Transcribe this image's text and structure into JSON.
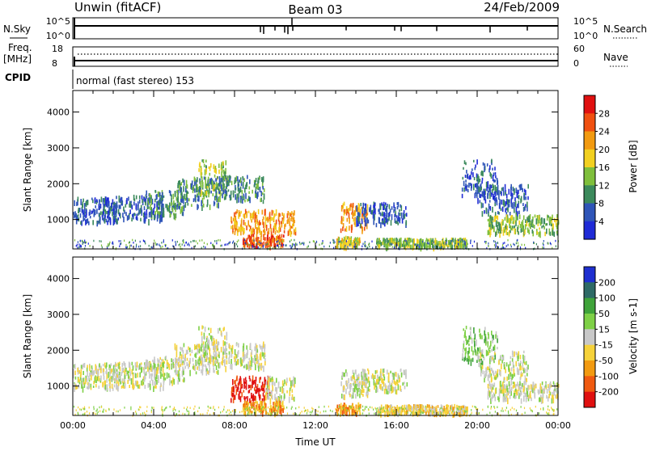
{
  "header": {
    "station": "Unwin (fitACF)",
    "beam": "Beam 03",
    "date": "24/Feb/2009"
  },
  "top_panel": {
    "left_label": "N.Sky",
    "right_label": "N.Search",
    "left_ticks": [
      "10^5",
      "10^0"
    ],
    "right_ticks": [
      "10^5",
      "10^0"
    ]
  },
  "freq_panel": {
    "left_label_1": "Freq.",
    "left_label_2": "[MHz]",
    "right_label": "Nave",
    "left_ticks": [
      "18",
      "8"
    ],
    "right_ticks": [
      "60",
      "0"
    ]
  },
  "cpid": {
    "label": "CPID",
    "mode_text": "normal (fast stereo) 153"
  },
  "chart_data": [
    {
      "type": "heatmap",
      "name": "power",
      "ylabel": "Slant Range [km]",
      "ylim": [
        180,
        4600
      ],
      "yticks": [
        1000,
        2000,
        3000,
        4000
      ],
      "colorbar_label": "Power [dB]",
      "colorbar_ticks": [
        "4",
        "8",
        "12",
        "16",
        "20",
        "24",
        "28"
      ],
      "colorbar_colors": [
        "#1f2bd6",
        "#2f55b8",
        "#3c8a5c",
        "#7fbf3c",
        "#f2d020",
        "#f29a10",
        "#f05010",
        "#e01010"
      ],
      "x_range_hours": [
        0,
        24
      ],
      "blobs": [
        {
          "t0": 0.0,
          "t1": 2.2,
          "r0": 950,
          "r1": 1650,
          "c": 1
        },
        {
          "t0": 1.5,
          "t1": 4.5,
          "r0": 1000,
          "r1": 1700,
          "c": 1
        },
        {
          "t0": 3.5,
          "t1": 5.5,
          "r0": 1150,
          "r1": 1850,
          "c": 2
        },
        {
          "t0": 5.0,
          "t1": 7.2,
          "r0": 1400,
          "r1": 2200,
          "c": 2
        },
        {
          "t0": 6.2,
          "t1": 7.6,
          "r0": 1700,
          "r1": 2700,
          "c": 3
        },
        {
          "t0": 7.0,
          "t1": 9.5,
          "r0": 1550,
          "r1": 2250,
          "c": 2
        },
        {
          "t0": 7.8,
          "t1": 11.0,
          "r0": 650,
          "r1": 1300,
          "c": 5
        },
        {
          "t0": 8.4,
          "t1": 10.4,
          "r0": 300,
          "r1": 600,
          "c": 6
        },
        {
          "t0": 13.2,
          "t1": 14.6,
          "r0": 750,
          "r1": 1500,
          "c": 5
        },
        {
          "t0": 13.0,
          "t1": 14.2,
          "r0": 300,
          "r1": 550,
          "c": 4
        },
        {
          "t0": 14.0,
          "t1": 16.5,
          "r0": 900,
          "r1": 1500,
          "c": 1
        },
        {
          "t0": 15.0,
          "t1": 19.5,
          "r0": 280,
          "r1": 500,
          "c": 3
        },
        {
          "t0": 19.2,
          "t1": 21.0,
          "r0": 1700,
          "r1": 2700,
          "c": 1
        },
        {
          "t0": 20.0,
          "t1": 22.5,
          "r0": 1200,
          "r1": 2000,
          "c": 1
        },
        {
          "t0": 20.5,
          "t1": 24.0,
          "r0": 650,
          "r1": 1150,
          "c": 3
        }
      ]
    },
    {
      "type": "heatmap",
      "name": "velocity",
      "ylabel": "Slant Range [km]",
      "ylim": [
        180,
        4600
      ],
      "yticks": [
        1000,
        2000,
        3000,
        4000
      ],
      "colorbar_label": "Velocity [m s-1]",
      "colorbar_ticks": [
        "200",
        "100",
        "50",
        "15",
        "-15",
        "-50",
        "-100",
        "-200"
      ],
      "colorbar_colors": [
        "#1e2fd0",
        "#2e6a66",
        "#3fa33a",
        "#7ed046",
        "#c8c8c8",
        "#f6d23a",
        "#f29a10",
        "#f05a10",
        "#e01010"
      ],
      "x_range_hours": [
        0,
        24
      ],
      "xlabel": "Time UT",
      "xticks": [
        "00:00",
        "04:00",
        "08:00",
        "12:00",
        "16:00",
        "20:00",
        "00:00"
      ],
      "blobs": [
        {
          "t0": 0.0,
          "t1": 2.2,
          "r0": 950,
          "r1": 1650,
          "c": 4
        },
        {
          "t0": 1.5,
          "t1": 4.5,
          "r0": 1000,
          "r1": 1700,
          "c": 4
        },
        {
          "t0": 3.5,
          "t1": 5.5,
          "r0": 1150,
          "r1": 1850,
          "c": 4
        },
        {
          "t0": 5.0,
          "t1": 7.2,
          "r0": 1400,
          "r1": 2200,
          "c": 4
        },
        {
          "t0": 6.2,
          "t1": 7.6,
          "r0": 1700,
          "r1": 2700,
          "c": 4
        },
        {
          "t0": 7.0,
          "t1": 9.5,
          "r0": 1550,
          "r1": 2250,
          "c": 4
        },
        {
          "t0": 7.8,
          "t1": 9.8,
          "r0": 650,
          "r1": 1300,
          "c": 8
        },
        {
          "t0": 9.5,
          "t1": 11.0,
          "r0": 650,
          "r1": 1300,
          "c": 4
        },
        {
          "t0": 8.4,
          "t1": 10.4,
          "r0": 300,
          "r1": 600,
          "c": 6
        },
        {
          "t0": 13.2,
          "t1": 14.6,
          "r0": 750,
          "r1": 1500,
          "c": 4
        },
        {
          "t0": 13.0,
          "t1": 14.2,
          "r0": 300,
          "r1": 550,
          "c": 6
        },
        {
          "t0": 14.0,
          "t1": 16.5,
          "r0": 900,
          "r1": 1500,
          "c": 4
        },
        {
          "t0": 15.0,
          "t1": 19.5,
          "r0": 280,
          "r1": 500,
          "c": 5
        },
        {
          "t0": 19.2,
          "t1": 21.0,
          "r0": 1700,
          "r1": 2700,
          "c": 3
        },
        {
          "t0": 20.0,
          "t1": 22.5,
          "r0": 1200,
          "r1": 2000,
          "c": 4
        },
        {
          "t0": 20.5,
          "t1": 24.0,
          "r0": 650,
          "r1": 1150,
          "c": 4
        }
      ]
    }
  ]
}
